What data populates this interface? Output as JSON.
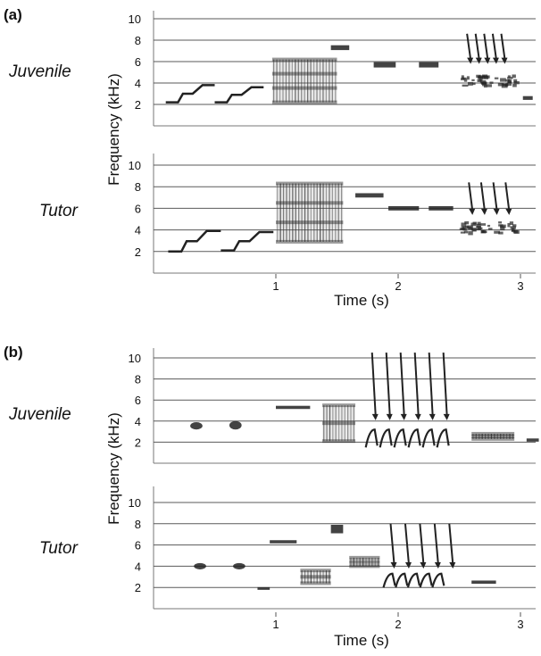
{
  "figure": {
    "panels": [
      {
        "label": "(a)",
        "rows": [
          {
            "label": "Juvenile",
            "events": [
              {
                "k": "step",
                "t0": 0.1,
                "t1": 0.5,
                "f0": 2.2,
                "f1": 3.8
              },
              {
                "k": "step",
                "t0": 0.5,
                "t1": 0.9,
                "f0": 2.2,
                "f1": 3.6
              },
              {
                "k": "block",
                "t0": 0.97,
                "t1": 1.5,
                "f0": 2.2,
                "f1": 6.2,
                "dense": 0.75
              },
              {
                "k": "tone",
                "t0": 1.45,
                "t1": 1.6,
                "f": 7.3,
                "w": 0.45
              },
              {
                "k": "tone",
                "t0": 1.8,
                "t1": 1.98,
                "f": 5.7,
                "w": 0.5
              },
              {
                "k": "tone",
                "t0": 2.17,
                "t1": 2.33,
                "f": 5.7,
                "w": 0.5
              },
              {
                "k": "spikes",
                "t0": 2.55,
                "t1": 2.9,
                "n": 5,
                "f0": 6.2,
                "f1": 8.6
              },
              {
                "k": "cluster",
                "t0": 2.5,
                "t1": 2.95,
                "f0": 3.8,
                "f1": 4.8
              },
              {
                "k": "tone",
                "t0": 3.02,
                "t1": 3.1,
                "f": 2.6,
                "w": 0.35
              }
            ]
          },
          {
            "label": "Tutor",
            "events": [
              {
                "k": "step",
                "t0": 0.12,
                "t1": 0.55,
                "f0": 2.0,
                "f1": 3.9
              },
              {
                "k": "step",
                "t0": 0.55,
                "t1": 0.98,
                "f0": 2.1,
                "f1": 3.8
              },
              {
                "k": "block",
                "t0": 1.0,
                "t1": 1.55,
                "f0": 2.9,
                "f1": 8.3,
                "dense": 0.85
              },
              {
                "k": "tone",
                "t0": 1.65,
                "t1": 1.88,
                "f": 7.2,
                "w": 0.4
              },
              {
                "k": "tone",
                "t0": 1.92,
                "t1": 2.17,
                "f": 6.0,
                "w": 0.4
              },
              {
                "k": "tone",
                "t0": 2.25,
                "t1": 2.45,
                "f": 6.0,
                "w": 0.4
              },
              {
                "k": "spikes",
                "t0": 2.55,
                "t1": 2.95,
                "n": 4,
                "f0": 5.8,
                "f1": 8.4
              },
              {
                "k": "cluster",
                "t0": 2.5,
                "t1": 2.95,
                "f0": 3.8,
                "f1": 4.8
              }
            ]
          }
        ],
        "time_ticks": [
          "1",
          "2",
          "3"
        ]
      },
      {
        "label": "(b)",
        "rows": [
          {
            "label": "Juvenile",
            "events": [
              {
                "k": "blob",
                "t0": 0.3,
                "t1": 0.4,
                "f0": 3.2,
                "f1": 3.9
              },
              {
                "k": "blob",
                "t0": 0.62,
                "t1": 0.72,
                "f0": 3.2,
                "f1": 4.0
              },
              {
                "k": "tone",
                "t0": 1.0,
                "t1": 1.28,
                "f": 5.3,
                "w": 0.3
              },
              {
                "k": "block",
                "t0": 1.38,
                "t1": 1.65,
                "f0": 2.1,
                "f1": 5.5,
                "dense": 0.8
              },
              {
                "k": "fans",
                "t0": 1.7,
                "t1": 2.4,
                "n": 6,
                "f0": 1.5,
                "f1": 3.2
              },
              {
                "k": "spikes",
                "t0": 1.75,
                "t1": 2.45,
                "n": 6,
                "f0": 4.5,
                "f1": 10.5
              },
              {
                "k": "block",
                "t0": 2.6,
                "t1": 2.95,
                "f0": 2.3,
                "f1": 2.8,
                "dense": 0.9
              },
              {
                "k": "tone",
                "t0": 3.05,
                "t1": 3.15,
                "f": 2.2,
                "w": 0.3
              }
            ]
          },
          {
            "label": "Tutor",
            "events": [
              {
                "k": "blob",
                "t0": 0.33,
                "t1": 0.43,
                "f0": 3.7,
                "f1": 4.3
              },
              {
                "k": "blob",
                "t0": 0.65,
                "t1": 0.75,
                "f0": 3.7,
                "f1": 4.3
              },
              {
                "k": "tone",
                "t0": 0.85,
                "t1": 0.95,
                "f": 1.9,
                "w": 0.25
              },
              {
                "k": "tone",
                "t0": 0.95,
                "t1": 1.17,
                "f": 6.3,
                "w": 0.3
              },
              {
                "k": "block",
                "t0": 1.2,
                "t1": 1.45,
                "f0": 2.4,
                "f1": 3.6,
                "dense": 0.9
              },
              {
                "k": "tone",
                "t0": 1.45,
                "t1": 1.55,
                "f": 7.5,
                "w": 0.8
              },
              {
                "k": "block",
                "t0": 1.6,
                "t1": 1.85,
                "f0": 4.0,
                "f1": 4.8,
                "dense": 0.9
              },
              {
                "k": "fans",
                "t0": 1.85,
                "t1": 2.35,
                "n": 5,
                "f0": 2.0,
                "f1": 3.3
              },
              {
                "k": "spikes",
                "t0": 1.9,
                "t1": 2.5,
                "n": 5,
                "f0": 4.2,
                "f1": 8.0
              },
              {
                "k": "tone",
                "t0": 2.6,
                "t1": 2.8,
                "f": 2.5,
                "w": 0.3
              }
            ]
          }
        ],
        "time_ticks": [
          "1",
          "2",
          "3"
        ]
      }
    ],
    "freq_ticks": [
      "2",
      "4",
      "6",
      "8",
      "10"
    ],
    "ylabel": "Frequency (kHz)",
    "xlabel": "Time (s)"
  }
}
